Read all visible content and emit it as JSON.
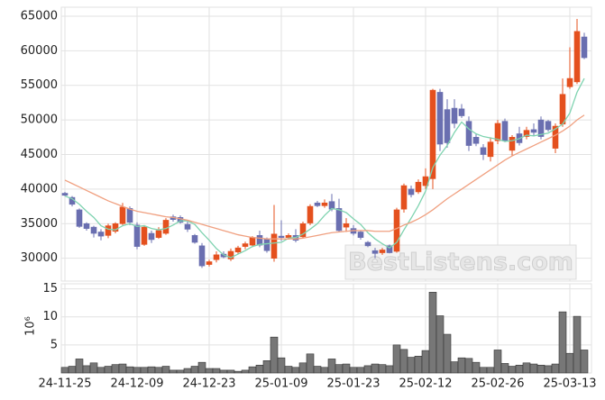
{
  "chart_data": [
    {
      "type": "candlestick",
      "up_color": "#e4501e",
      "down_color": "#6a6fb0",
      "open": [
        39400,
        38800,
        37000,
        35000,
        34500,
        33800,
        33300,
        33900,
        35000,
        37200,
        34800,
        32000,
        33600,
        33000,
        33600,
        36000,
        35900,
        34900,
        33300,
        31800,
        29100,
        29800,
        30600,
        29900,
        30900,
        31700,
        31900,
        33300,
        32800,
        30000,
        33200,
        33000,
        33300,
        33100,
        35100,
        38000,
        37600,
        38200,
        37200,
        34500,
        34300,
        33800,
        32300,
        31100,
        30800,
        31800,
        31000,
        37100,
        40000,
        39600,
        40500,
        41500,
        54000,
        51500,
        51700,
        51600,
        49800,
        47500,
        46000,
        44700,
        47000,
        49800,
        45600,
        48000,
        47600,
        48600,
        50000,
        49800,
        45900,
        49400,
        54800,
        55500,
        62000
      ],
      "high": [
        39600,
        39000,
        37200,
        35200,
        34700,
        34200,
        35000,
        35200,
        38000,
        37500,
        35200,
        34800,
        34000,
        34500,
        35800,
        36300,
        36200,
        35300,
        33500,
        32200,
        29800,
        31000,
        31000,
        31400,
        31800,
        32400,
        33200,
        34000,
        33000,
        37700,
        35500,
        33600,
        34200,
        35300,
        37800,
        38300,
        38500,
        39300,
        38600,
        35800,
        34800,
        34000,
        32500,
        31500,
        31500,
        32000,
        37300,
        40800,
        40500,
        41400,
        43000,
        54500,
        54500,
        53000,
        53000,
        52300,
        50500,
        48000,
        46500,
        47500,
        50000,
        50200,
        47800,
        49000,
        49000,
        49500,
        50500,
        50000,
        49500,
        56000,
        60500,
        64600,
        62600
      ],
      "low": [
        39000,
        37500,
        34400,
        34000,
        33000,
        32600,
        32900,
        33600,
        34800,
        34800,
        31300,
        31800,
        32200,
        32800,
        33400,
        35300,
        35000,
        33800,
        32100,
        28600,
        28800,
        29400,
        30000,
        29600,
        30600,
        31300,
        31600,
        31600,
        30800,
        29500,
        32500,
        32700,
        32300,
        32900,
        34800,
        37400,
        37300,
        36800,
        33800,
        33800,
        33300,
        32700,
        31600,
        30000,
        30500,
        30700,
        30800,
        36600,
        38800,
        39300,
        40000,
        40000,
        45500,
        46000,
        48800,
        50300,
        45500,
        46200,
        44200,
        44000,
        46500,
        46800,
        44800,
        46300,
        47200,
        47600,
        47200,
        48300,
        45200,
        49000,
        54500,
        55200,
        58800
      ],
      "close": [
        39100,
        37800,
        34600,
        34300,
        33600,
        33200,
        34700,
        35000,
        37400,
        35200,
        31700,
        34500,
        32700,
        34000,
        35500,
        35600,
        35200,
        34200,
        32300,
        28900,
        29500,
        30500,
        30200,
        31000,
        31500,
        32100,
        33000,
        31900,
        31100,
        33500,
        33000,
        33300,
        32600,
        35000,
        37500,
        37600,
        38000,
        37100,
        34000,
        35000,
        33600,
        33000,
        31800,
        30700,
        31200,
        30800,
        37000,
        40500,
        39200,
        41000,
        41800,
        54300,
        46500,
        46700,
        49500,
        50600,
        46300,
        46600,
        45000,
        46800,
        49500,
        47000,
        47500,
        46700,
        48500,
        48200,
        47600,
        48600,
        49100,
        53700,
        56000,
        62800,
        59000
      ],
      "series": [
        {
          "color": "#7fd3b0",
          "values": [
            39000,
            38600,
            37800,
            36800,
            35900,
            34700,
            34200,
            34100,
            34700,
            35000,
            34600,
            34700,
            34300,
            34100,
            34300,
            34800,
            35400,
            35400,
            34900,
            33700,
            32600,
            31400,
            30500,
            30100,
            30600,
            31100,
            31700,
            32000,
            32100,
            32200,
            32300,
            32900,
            33000,
            33500,
            34200,
            35000,
            36200,
            37200,
            37000,
            36600,
            35700,
            34900,
            33700,
            32800,
            32100,
            31500,
            32300,
            34100,
            35800,
            37600,
            39700,
            43100,
            44900,
            46300,
            48200,
            49700,
            48700,
            48000,
            47600,
            47400,
            47200,
            46900,
            47000,
            47300,
            47800,
            47700,
            47900,
            48100,
            48700,
            49400,
            51000,
            54000,
            56000
          ]
        },
        {
          "color": "#f0a080",
          "values": [
            41300,
            40800,
            40300,
            39800,
            39300,
            38800,
            38300,
            37900,
            37500,
            37100,
            36800,
            36600,
            36400,
            36200,
            36000,
            35900,
            35700,
            35500,
            35200,
            34900,
            34600,
            34300,
            34000,
            33700,
            33400,
            33200,
            33000,
            32900,
            32800,
            32800,
            32800,
            32800,
            32800,
            32900,
            33100,
            33300,
            33500,
            33700,
            33800,
            33900,
            34000,
            34000,
            34000,
            33900,
            33900,
            33900,
            34300,
            34800,
            35200,
            35700,
            36300,
            37000,
            37800,
            38600,
            39300,
            40000,
            40700,
            41400,
            42100,
            42800,
            43500,
            44200,
            44800,
            45300,
            45800,
            46300,
            46800,
            47300,
            47800,
            48400,
            49100,
            50000,
            50700
          ]
        }
      ],
      "ylim": [
        26700,
        66300
      ],
      "yticks": [
        30000,
        35000,
        40000,
        45000,
        50000,
        55000,
        60000,
        65000
      ],
      "grid": true,
      "watermark": "BestListens.com"
    },
    {
      "type": "bar",
      "ylabel": "10⁶",
      "categories": [
        "24-11-25",
        null,
        null,
        null,
        null,
        null,
        null,
        null,
        null,
        null,
        "24-12-09",
        null,
        null,
        null,
        null,
        null,
        null,
        null,
        null,
        null,
        "24-12-23",
        null,
        null,
        null,
        null,
        null,
        null,
        null,
        null,
        null,
        "25-01-09",
        null,
        null,
        null,
        null,
        null,
        null,
        null,
        null,
        null,
        "25-01-23",
        null,
        null,
        null,
        null,
        null,
        null,
        null,
        null,
        null,
        "25-02-12",
        null,
        null,
        null,
        null,
        null,
        null,
        null,
        null,
        null,
        "25-02-26",
        null,
        null,
        null,
        null,
        null,
        null,
        null,
        null,
        null,
        "25-03-13",
        null,
        null
      ],
      "values": [
        1.0,
        1.2,
        2.5,
        1.3,
        1.8,
        1.0,
        1.2,
        1.5,
        1.6,
        1.1,
        1.0,
        1.0,
        1.1,
        1.0,
        1.2,
        0.5,
        0.5,
        0.8,
        1.2,
        1.9,
        0.8,
        0.8,
        0.5,
        0.5,
        0.3,
        0.5,
        1.1,
        1.4,
        2.2,
        6.4,
        2.7,
        1.2,
        1.0,
        1.8,
        3.4,
        1.2,
        1.0,
        2.5,
        1.5,
        1.6,
        1.0,
        1.0,
        1.3,
        1.6,
        1.5,
        1.3,
        5.0,
        4.2,
        2.8,
        3.0,
        4.0,
        14.4,
        10.2,
        6.9,
        2.0,
        2.7,
        2.6,
        1.9,
        1.0,
        1.0,
        4.1,
        1.7,
        1.2,
        1.4,
        1.8,
        1.6,
        1.4,
        1.3,
        1.6,
        10.9,
        3.5,
        10.1,
        4.1
      ],
      "color": "#777777",
      "ylim": [
        0,
        15.9
      ],
      "yticks": [
        5,
        10,
        15
      ],
      "grid": true
    }
  ]
}
